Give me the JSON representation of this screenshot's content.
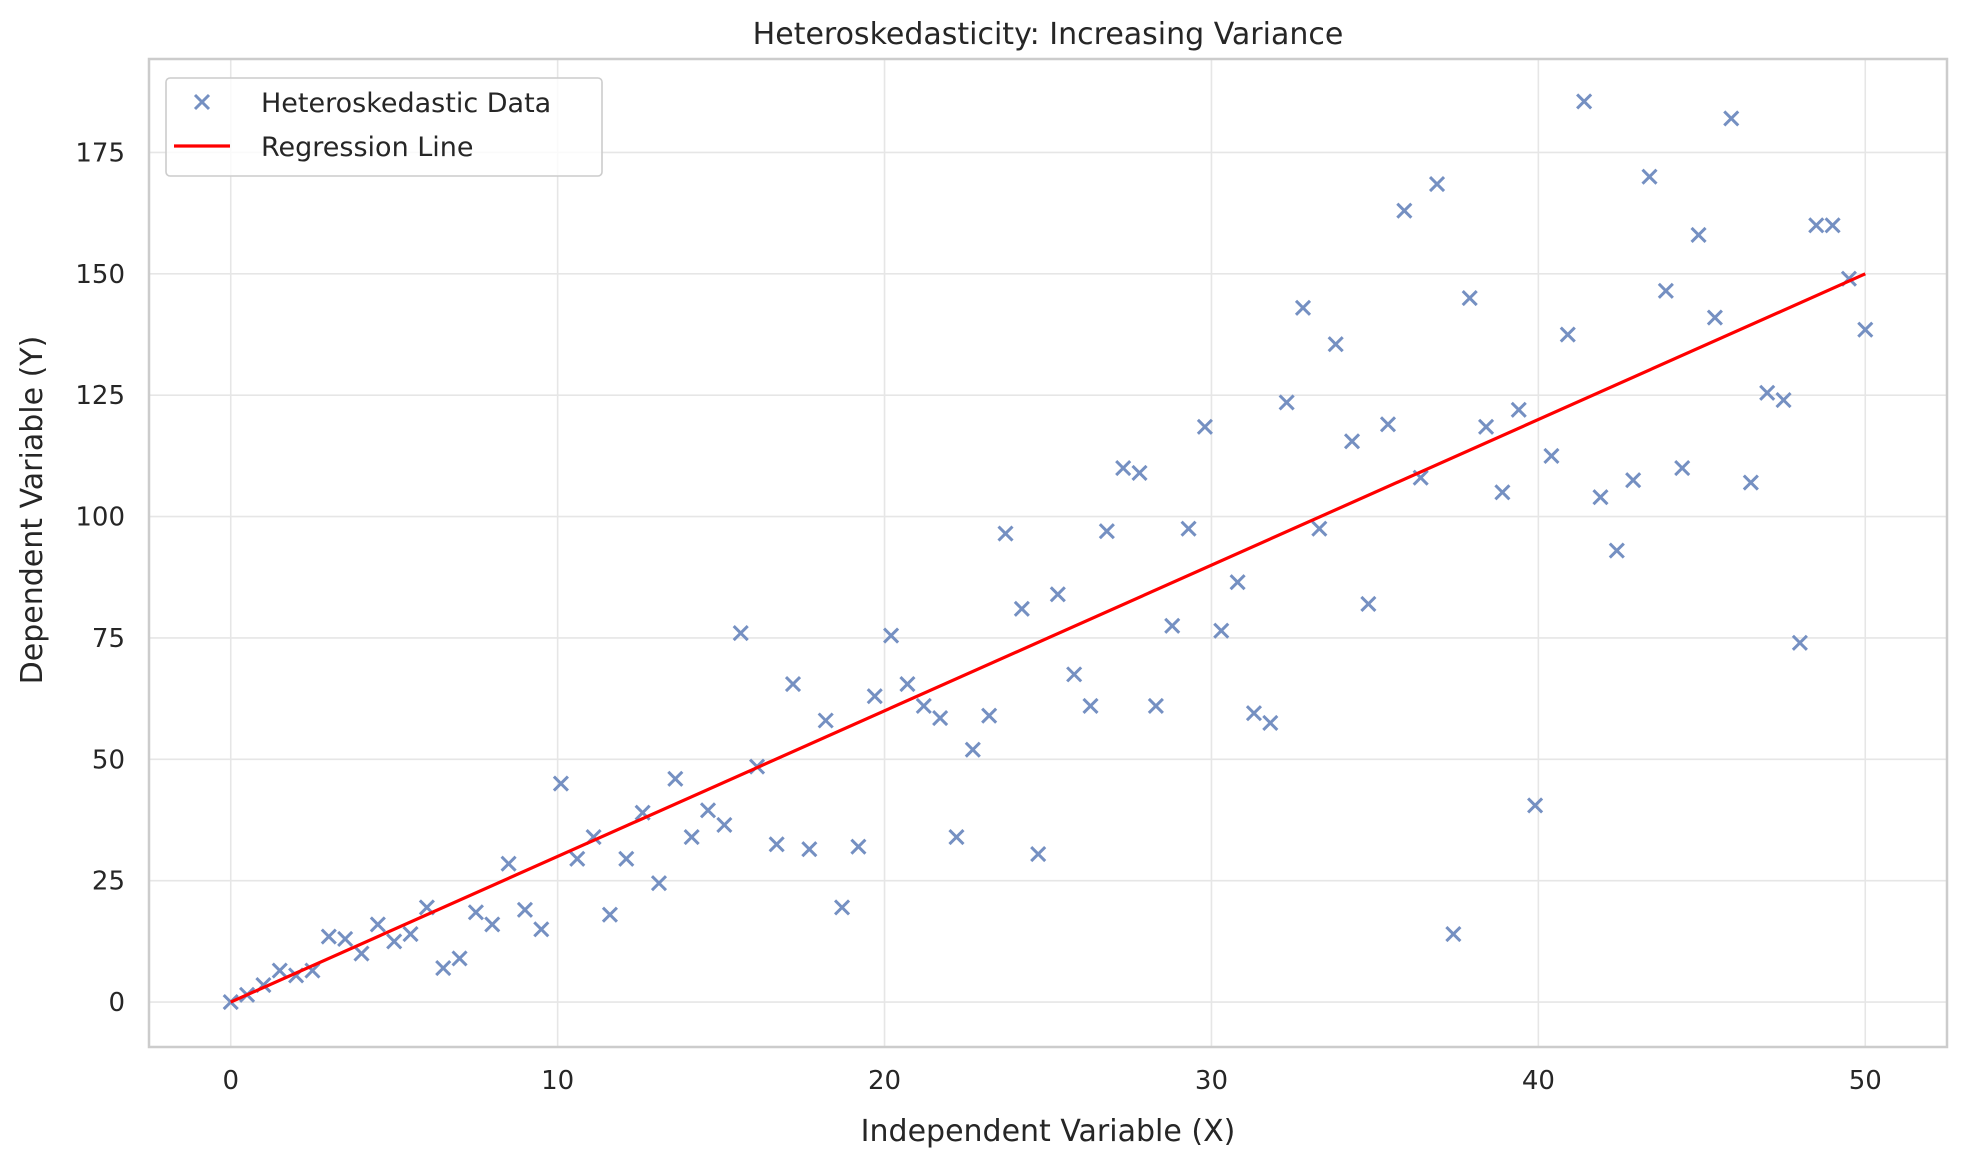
{
  "chart_data": {
    "type": "scatter",
    "title": "Heteroskedasticity: Increasing Variance",
    "xlabel": "Independent Variable (X)",
    "ylabel": "Dependent Variable (Y)",
    "xlim": [
      -2.5,
      52.5
    ],
    "ylim": [
      -9.25,
      194.25
    ],
    "xticks": [
      0,
      10,
      20,
      30,
      40,
      50
    ],
    "yticks": [
      0,
      25,
      50,
      75,
      100,
      125,
      150,
      175
    ],
    "grid": true,
    "legend_position": "top-left",
    "series": [
      {
        "name": "Heteroskedastic Data",
        "kind": "scatter",
        "marker": "x",
        "color": "#7590c2",
        "points": [
          [
            0.0,
            0.0
          ],
          [
            0.5,
            1.5
          ],
          [
            1.0,
            3.5
          ],
          [
            1.5,
            6.5
          ],
          [
            2.0,
            5.5
          ],
          [
            2.5,
            6.5
          ],
          [
            3.0,
            13.5
          ],
          [
            3.5,
            13.0
          ],
          [
            4.0,
            10.0
          ],
          [
            4.5,
            16.0
          ],
          [
            5.0,
            12.5
          ],
          [
            5.5,
            14.0
          ],
          [
            6.0,
            19.5
          ],
          [
            6.5,
            7.0
          ],
          [
            7.0,
            9.0
          ],
          [
            7.5,
            18.5
          ],
          [
            8.0,
            16.0
          ],
          [
            8.5,
            28.5
          ],
          [
            9.0,
            19.0
          ],
          [
            9.5,
            15.0
          ],
          [
            10.1,
            45.0
          ],
          [
            10.6,
            29.5
          ],
          [
            11.1,
            34.0
          ],
          [
            11.6,
            18.0
          ],
          [
            12.1,
            29.5
          ],
          [
            12.6,
            39.0
          ],
          [
            13.1,
            24.5
          ],
          [
            13.6,
            46.0
          ],
          [
            14.1,
            34.0
          ],
          [
            14.6,
            39.5
          ],
          [
            15.1,
            36.5
          ],
          [
            15.6,
            76.0
          ],
          [
            16.1,
            48.5
          ],
          [
            16.7,
            32.5
          ],
          [
            17.2,
            65.5
          ],
          [
            17.7,
            31.5
          ],
          [
            18.2,
            58.0
          ],
          [
            18.7,
            19.5
          ],
          [
            19.2,
            32.0
          ],
          [
            19.7,
            63.0
          ],
          [
            20.2,
            75.5
          ],
          [
            20.7,
            65.5
          ],
          [
            21.2,
            61.0
          ],
          [
            21.7,
            58.5
          ],
          [
            22.2,
            34.0
          ],
          [
            22.7,
            52.0
          ],
          [
            23.2,
            59.0
          ],
          [
            23.7,
            96.5
          ],
          [
            24.2,
            81.0
          ],
          [
            24.7,
            30.5
          ],
          [
            25.3,
            84.0
          ],
          [
            25.8,
            67.5
          ],
          [
            26.3,
            61.0
          ],
          [
            26.8,
            97.0
          ],
          [
            27.3,
            110.0
          ],
          [
            27.8,
            109.0
          ],
          [
            28.3,
            61.0
          ],
          [
            28.8,
            77.5
          ],
          [
            29.3,
            97.5
          ],
          [
            29.8,
            118.5
          ],
          [
            30.3,
            76.5
          ],
          [
            30.8,
            86.5
          ],
          [
            31.3,
            59.5
          ],
          [
            31.8,
            57.5
          ],
          [
            32.3,
            123.5
          ],
          [
            32.8,
            143.0
          ],
          [
            33.3,
            97.5
          ],
          [
            33.8,
            135.5
          ],
          [
            34.3,
            115.5
          ],
          [
            34.8,
            82.0
          ],
          [
            35.4,
            119.0
          ],
          [
            35.9,
            163.0
          ],
          [
            36.4,
            108.0
          ],
          [
            36.9,
            168.5
          ],
          [
            37.4,
            14.0
          ],
          [
            37.9,
            145.0
          ],
          [
            38.4,
            118.5
          ],
          [
            38.9,
            105.0
          ],
          [
            39.4,
            122.0
          ],
          [
            39.9,
            40.5
          ],
          [
            40.4,
            112.5
          ],
          [
            40.9,
            137.5
          ],
          [
            41.4,
            185.5
          ],
          [
            41.9,
            104.0
          ],
          [
            42.4,
            93.0
          ],
          [
            42.9,
            107.5
          ],
          [
            43.4,
            170.0
          ],
          [
            43.9,
            146.5
          ],
          [
            44.4,
            110.0
          ],
          [
            44.9,
            158.0
          ],
          [
            45.4,
            141.0
          ],
          [
            45.9,
            182.0
          ],
          [
            46.5,
            107.0
          ],
          [
            47.0,
            125.5
          ],
          [
            47.5,
            124.0
          ],
          [
            48.0,
            74.0
          ],
          [
            48.5,
            160.0
          ],
          [
            49.0,
            160.0
          ],
          [
            49.5,
            149.0
          ],
          [
            50.0,
            138.5
          ]
        ]
      },
      {
        "name": "Regression Line",
        "kind": "line",
        "color": "#ff0000",
        "x": [
          0,
          50
        ],
        "y": [
          0,
          150
        ]
      }
    ]
  }
}
